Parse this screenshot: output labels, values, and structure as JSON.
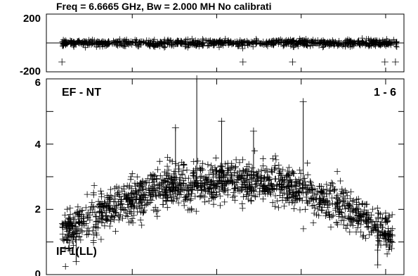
{
  "header": {
    "title": "Freq = 6.6665 GHz, Bw = 2.000 MH   No calibrati"
  },
  "chart_data": [
    {
      "type": "scatter",
      "panel": "phase",
      "marker": "+",
      "y_tick_labels": [
        "200",
        "-200"
      ],
      "ylim": [
        -200,
        200
      ],
      "grid": false,
      "band": {
        "center": 0,
        "spread": 18,
        "points": 900
      },
      "outliers": [
        {
          "x": 0.04,
          "y": -200
        },
        {
          "x": 0.55,
          "y": -200
        },
        {
          "x": 0.69,
          "y": -200
        },
        {
          "x": 0.95,
          "y": -200
        },
        {
          "x": 0.98,
          "y": -200
        }
      ]
    },
    {
      "type": "scatter",
      "panel": "amplitude",
      "marker": "+",
      "baseline_label": "EF - NT",
      "baseline_number": "1 - 6",
      "stokes_label": "IF 1(LL)",
      "y_tick_labels": [
        "6",
        "4",
        "2",
        "0"
      ],
      "ylim": [
        0,
        6
      ],
      "grid": false,
      "envelope": [
        {
          "x": 0.0,
          "y": 1.1
        },
        {
          "x": 0.08,
          "y": 1.5
        },
        {
          "x": 0.2,
          "y": 2.2
        },
        {
          "x": 0.35,
          "y": 2.7
        },
        {
          "x": 0.5,
          "y": 2.9
        },
        {
          "x": 0.65,
          "y": 2.8
        },
        {
          "x": 0.8,
          "y": 2.3
        },
        {
          "x": 0.92,
          "y": 1.6
        },
        {
          "x": 1.0,
          "y": 1.0
        }
      ],
      "noise_sd": 0.55,
      "points": 1500,
      "spikes": [
        {
          "x": 0.42,
          "y": 6.0
        },
        {
          "x": 0.49,
          "y": 4.7
        },
        {
          "x": 0.72,
          "y": 5.3
        },
        {
          "x": 0.36,
          "y": 4.5
        },
        {
          "x": 0.58,
          "y": 4.4
        },
        {
          "x": 0.08,
          "y": 0.4
        },
        {
          "x": 0.93,
          "y": 0.3
        }
      ]
    }
  ]
}
